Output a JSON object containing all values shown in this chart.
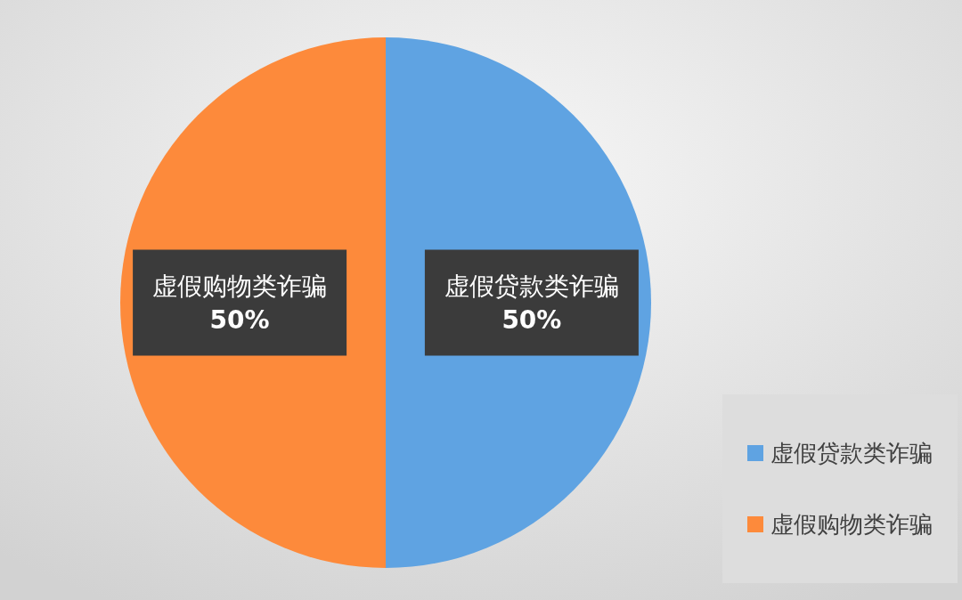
{
  "chart_data": {
    "type": "pie",
    "categories": [
      "虚假贷款类诈骗",
      "虚假购物类诈骗"
    ],
    "values": [
      50,
      50
    ],
    "colors": [
      "#5fa3e2",
      "#fd8a3b"
    ],
    "value_labels": [
      "50%",
      "50%"
    ],
    "legend": "bottom right"
  }
}
